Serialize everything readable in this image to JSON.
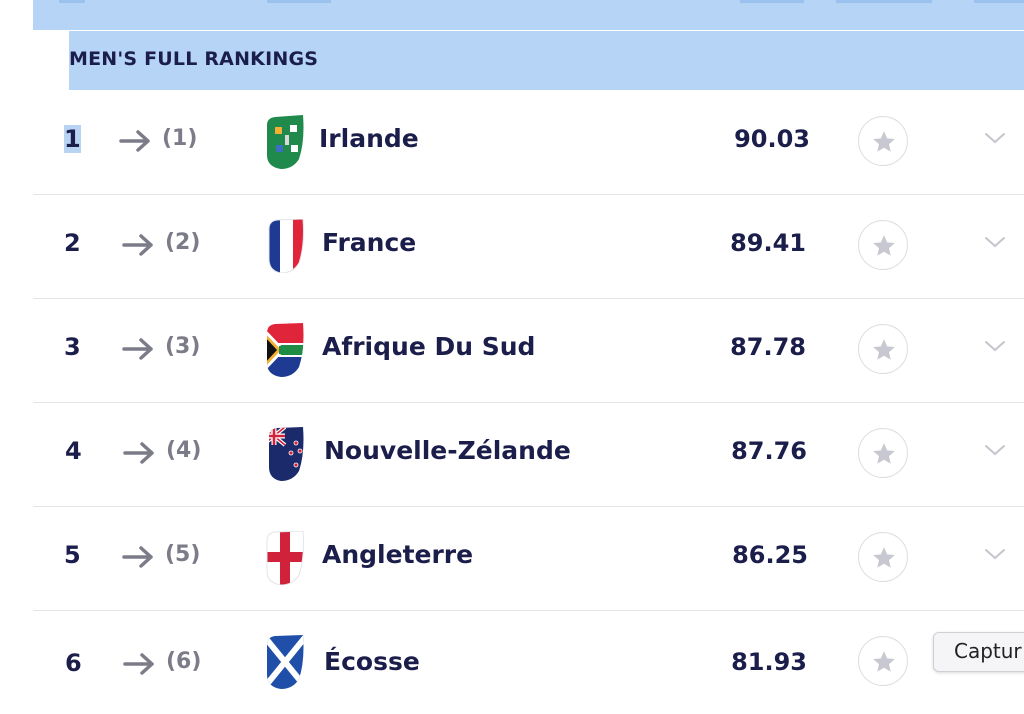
{
  "section": {
    "title": "MEN'S FULL RANKINGS"
  },
  "rows": [
    {
      "rank": "1",
      "previous": "(1)",
      "team": "Irlande",
      "points": "90.03",
      "flag": "ireland-flag-icon"
    },
    {
      "rank": "2",
      "previous": "(2)",
      "team": "France",
      "points": "89.41",
      "flag": "france-flag-icon"
    },
    {
      "rank": "3",
      "previous": "(3)",
      "team": "Afrique Du Sud",
      "points": "87.78",
      "flag": "south-africa-flag-icon"
    },
    {
      "rank": "4",
      "previous": "(4)",
      "team": "Nouvelle-Zélande",
      "points": "87.76",
      "flag": "new-zealand-flag-icon"
    },
    {
      "rank": "5",
      "previous": "(5)",
      "team": "Angleterre",
      "points": "86.25",
      "flag": "england-flag-icon"
    },
    {
      "rank": "6",
      "previous": "(6)",
      "team": "Écosse",
      "points": "81.93",
      "flag": "scotland-flag-icon"
    }
  ],
  "capture_button": {
    "label": "Captur"
  },
  "colors": {
    "header_bg": "#b5d4f6",
    "text_dark": "#1b1d4a",
    "text_muted": "#7b7c88"
  }
}
